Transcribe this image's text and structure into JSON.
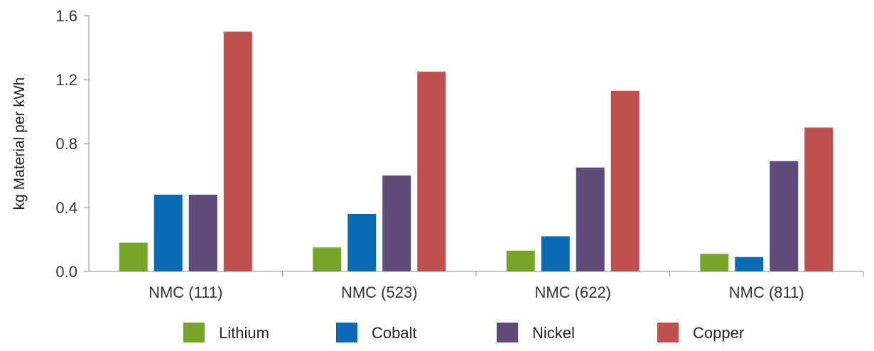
{
  "chart_data": {
    "type": "bar",
    "title": "",
    "xlabel": "",
    "ylabel": "kg Material per kWh",
    "ylim": [
      0,
      1.6
    ],
    "yticks": [
      "0.0",
      "0.4",
      "0.8",
      "1.2",
      "1.6"
    ],
    "grid": false,
    "legend_position": "bottom",
    "categories": [
      "NMC (111)",
      "NMC (523)",
      "NMC (622)",
      "NMC (811)"
    ],
    "series": [
      {
        "name": "Lithium",
        "color": "#77a52a",
        "values": [
          0.18,
          0.15,
          0.13,
          0.11
        ]
      },
      {
        "name": "Cobalt",
        "color": "#0a6bb5",
        "values": [
          0.48,
          0.36,
          0.22,
          0.09
        ]
      },
      {
        "name": "Nickel",
        "color": "#604a7b",
        "values": [
          0.48,
          0.6,
          0.65,
          0.69
        ]
      },
      {
        "name": "Copper",
        "color": "#c0504d",
        "values": [
          1.5,
          1.25,
          1.13,
          0.9
        ]
      }
    ]
  }
}
